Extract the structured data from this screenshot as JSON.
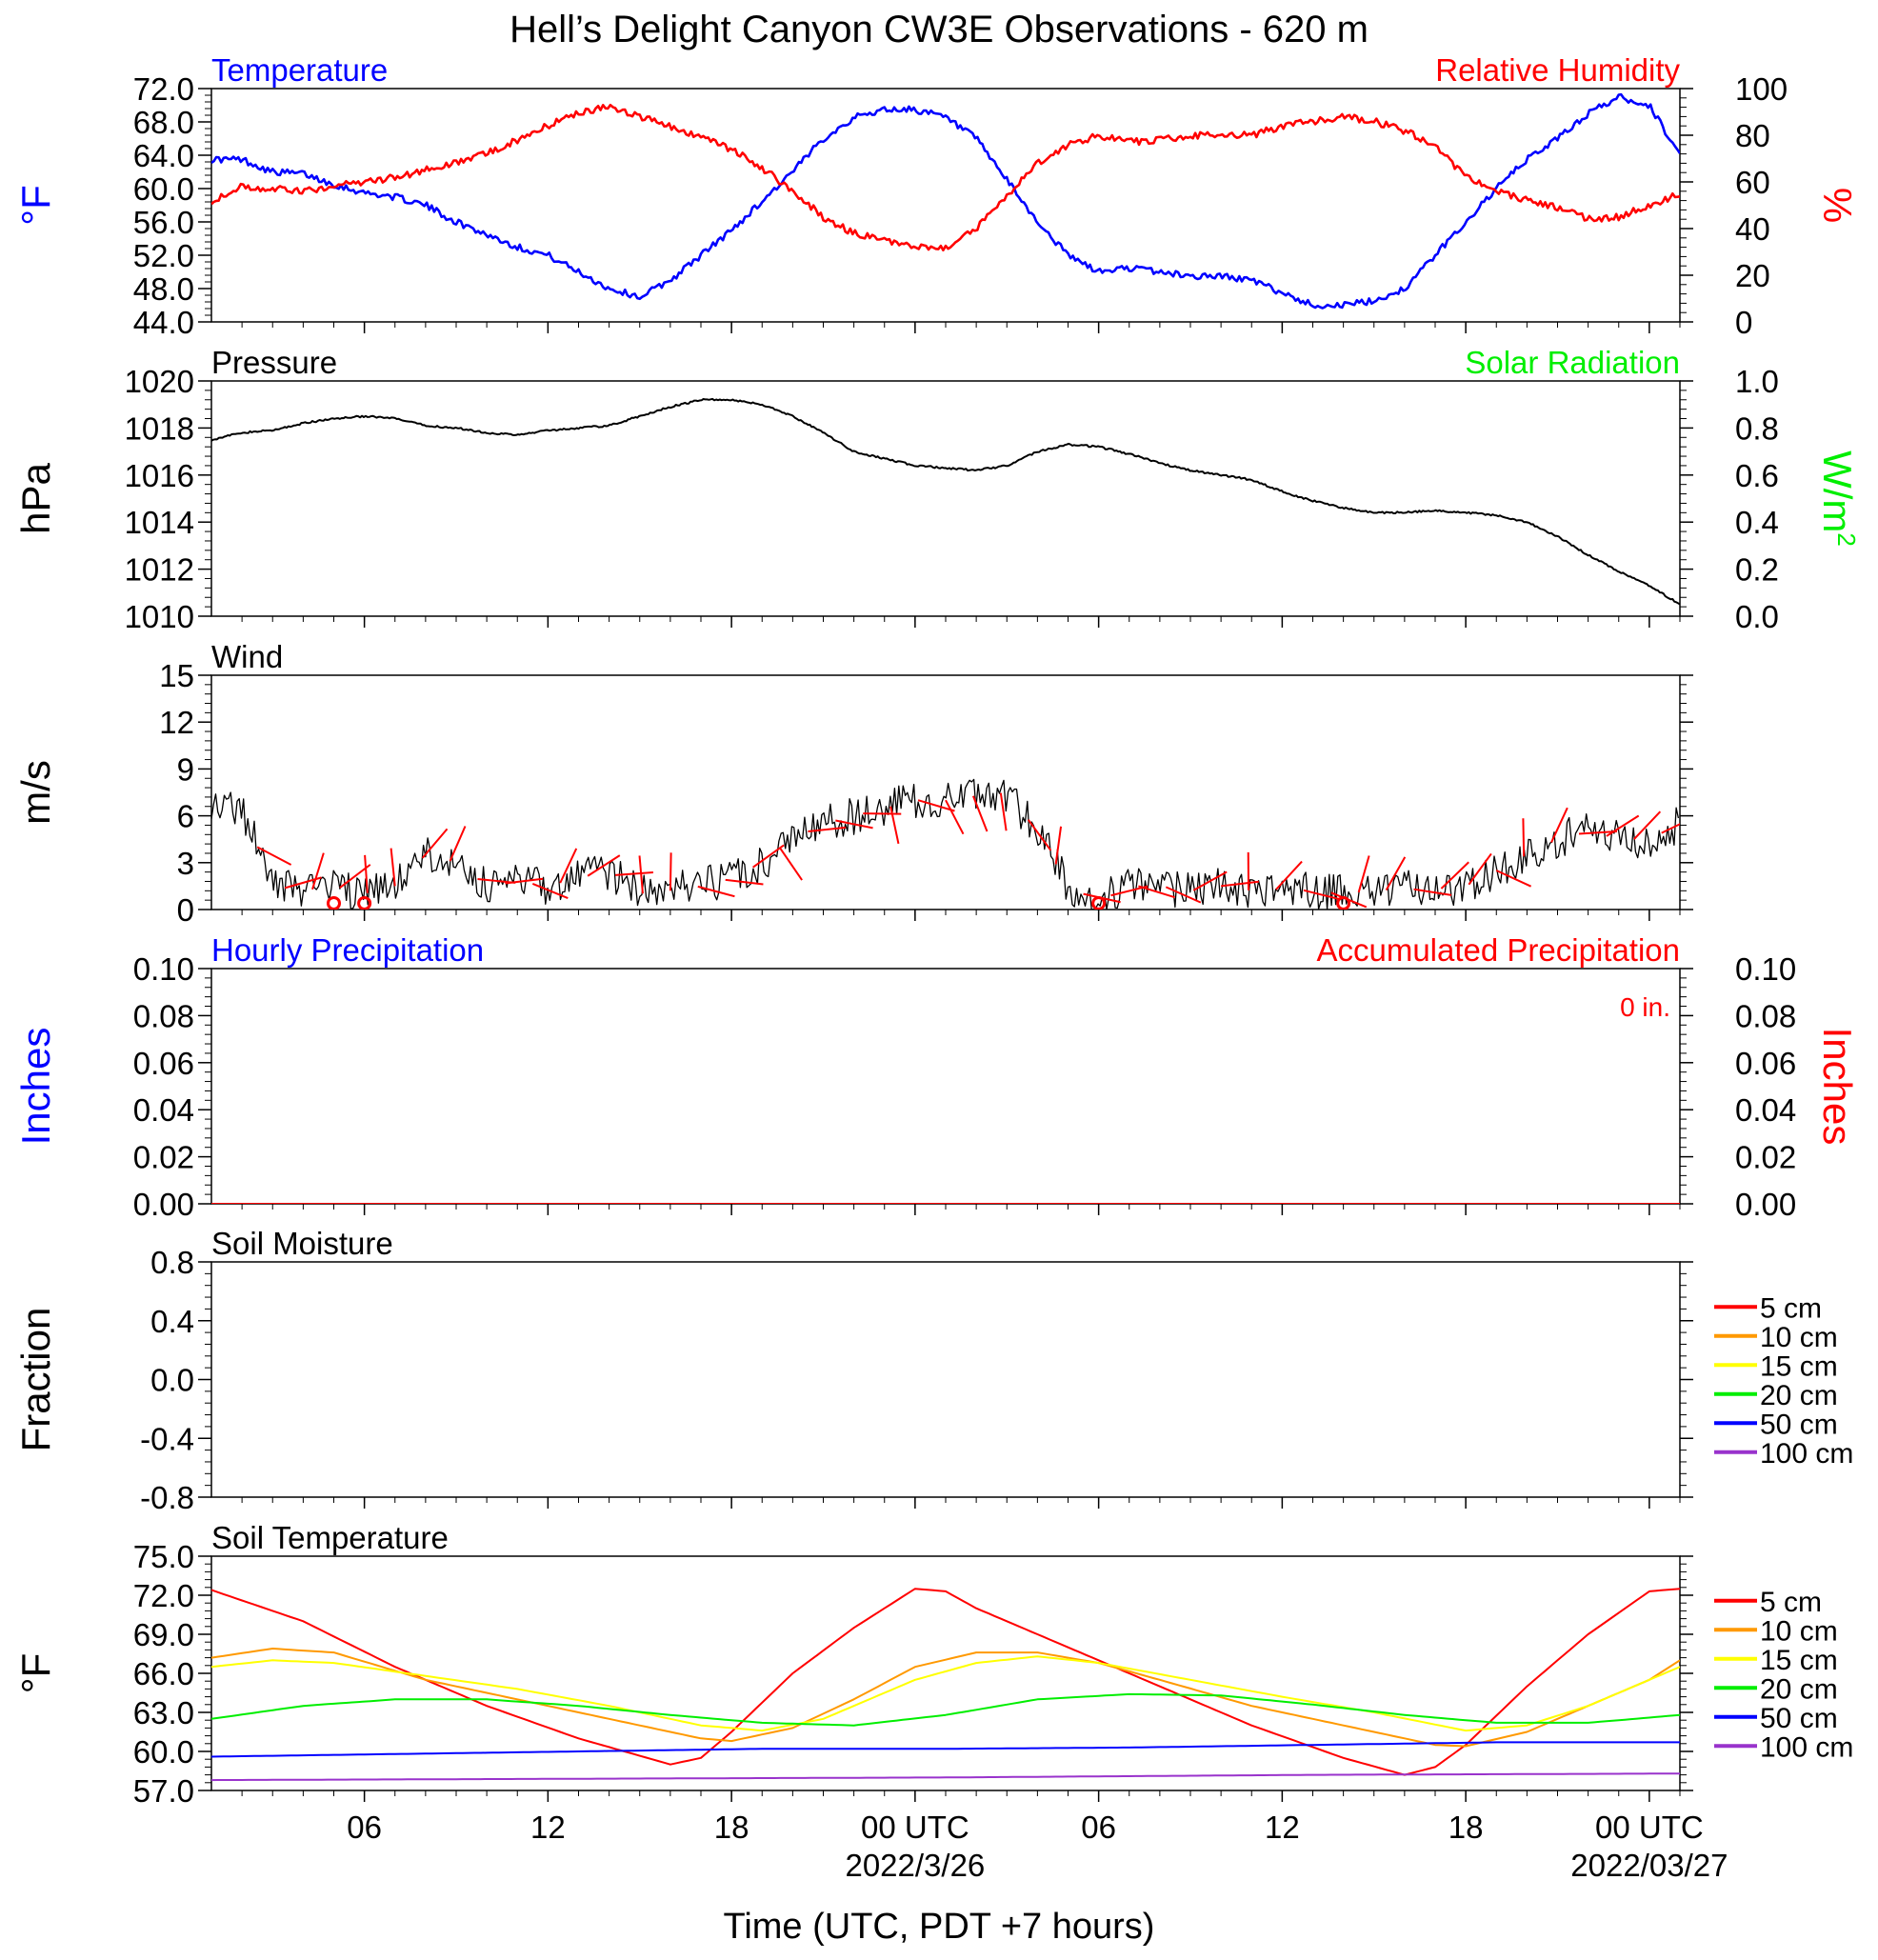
{
  "title": "Hell’s Delight Canyon CW3E Observations - 620 m",
  "xlabel": "Time (UTC, PDT +7 hours)",
  "x_ticks": [
    {
      "label": "06",
      "hours": 6
    },
    {
      "label": "12",
      "hours": 12
    },
    {
      "label": "18",
      "hours": 18
    },
    {
      "label": "00 UTC",
      "hours": 24,
      "date": "2022/3/26"
    },
    {
      "label": "06",
      "hours": 30
    },
    {
      "label": "12",
      "hours": 36
    },
    {
      "label": "18",
      "hours": 42
    },
    {
      "label": "00 UTC",
      "hours": 48,
      "date": "2022/03/27"
    }
  ],
  "x_range_hours": [
    1,
    49
  ],
  "colors": {
    "blue": "#0000ff",
    "red": "#ff0000",
    "green": "#00ee00",
    "black": "#000000",
    "orange": "#ff9900",
    "yellow": "#ffff00",
    "purple": "#9933cc"
  },
  "chart_data": [
    {
      "type": "line",
      "panel": "temperature_rh",
      "title_left": "Temperature",
      "title_right": "Relative Humidity",
      "ylabel_left": "°F",
      "ylabel_right": "%",
      "ylim_left": [
        44,
        72
      ],
      "yticks_left": [
        "72.0",
        "68.0",
        "64.0",
        "60.0",
        "56.0",
        "52.0",
        "48.0",
        "44.0"
      ],
      "ylim_right": [
        0,
        100
      ],
      "yticks_right": [
        "100",
        "80",
        "60",
        "40",
        "20",
        "0"
      ],
      "series": [
        {
          "name": "Temperature",
          "axis": "left",
          "color": "#0000ff",
          "x": [
            1,
            2,
            3,
            4,
            5,
            6,
            7,
            8,
            9,
            10,
            11,
            12,
            13,
            14,
            15,
            16,
            17,
            18,
            19,
            20,
            21,
            22,
            23,
            24,
            25,
            26,
            27,
            28,
            29,
            30,
            31,
            32,
            33,
            34,
            35,
            36,
            37,
            38,
            39,
            40,
            41,
            42,
            43,
            44,
            45,
            46,
            47,
            48,
            49
          ],
          "y": [
            63.5,
            63.5,
            62.0,
            61.8,
            60.5,
            59.5,
            59.0,
            58.0,
            56.0,
            54.5,
            53.0,
            52.0,
            50.0,
            48.0,
            47.0,
            49.0,
            52.0,
            55.0,
            58.5,
            62.0,
            66.0,
            68.5,
            69.5,
            69.5,
            68.5,
            66.0,
            61.0,
            56.0,
            52.0,
            50.0,
            50.5,
            50.0,
            49.5,
            49.5,
            49.0,
            47.5,
            46.0,
            46.0,
            46.5,
            48.0,
            52.0,
            56.0,
            60.0,
            63.5,
            66.0,
            69.0,
            71.0,
            70.0,
            64.0
          ]
        },
        {
          "name": "Relative Humidity",
          "axis": "right",
          "color": "#ff0000",
          "x": [
            1,
            2,
            3,
            4,
            5,
            6,
            7,
            8,
            9,
            10,
            11,
            12,
            13,
            14,
            15,
            16,
            17,
            18,
            19,
            20,
            21,
            22,
            23,
            24,
            25,
            26,
            27,
            28,
            29,
            30,
            31,
            32,
            33,
            34,
            35,
            36,
            37,
            38,
            39,
            40,
            41,
            42,
            43,
            44,
            45,
            46,
            47,
            48,
            49
          ],
          "y": [
            52,
            58,
            57,
            56,
            58,
            60,
            62,
            65,
            68,
            72,
            78,
            84,
            90,
            92,
            88,
            84,
            79,
            74,
            66,
            56,
            45,
            38,
            35,
            32,
            32,
            40,
            54,
            68,
            76,
            80,
            77,
            78,
            80,
            80,
            80,
            84,
            86,
            88,
            86,
            82,
            75,
            62,
            56,
            52,
            49,
            44,
            45,
            50,
            55
          ]
        }
      ]
    },
    {
      "type": "line",
      "panel": "pressure_solar",
      "title_left": "Pressure",
      "title_right": "Solar Radiation",
      "ylabel_left": "hPa",
      "ylabel_right_base": "W/m",
      "ylabel_right_sup": "2",
      "ylim_left": [
        1010,
        1020
      ],
      "yticks_left": [
        "1020",
        "1018",
        "1016",
        "1014",
        "1012",
        "1010"
      ],
      "ylim_right": [
        0,
        1
      ],
      "yticks_right": [
        "1.0",
        "0.8",
        "0.6",
        "0.4",
        "0.2",
        "0.0"
      ],
      "series": [
        {
          "name": "Pressure",
          "axis": "left",
          "color": "#000000",
          "x": [
            1,
            2,
            3,
            4,
            5,
            6,
            7,
            8,
            9,
            10,
            11,
            12,
            13,
            14,
            15,
            16,
            17,
            18,
            19,
            20,
            21,
            22,
            23,
            24,
            25,
            26,
            27,
            28,
            29,
            30,
            31,
            32,
            33,
            34,
            35,
            36,
            37,
            38,
            39,
            40,
            41,
            42,
            43,
            44,
            45,
            46,
            47,
            48,
            49
          ],
          "y": [
            1017.5,
            1017.8,
            1017.9,
            1018.2,
            1018.4,
            1018.5,
            1018.4,
            1018.1,
            1018.0,
            1017.8,
            1017.7,
            1017.9,
            1018.0,
            1018.1,
            1018.5,
            1018.9,
            1019.2,
            1019.2,
            1019.0,
            1018.5,
            1017.8,
            1017.0,
            1016.7,
            1016.4,
            1016.3,
            1016.2,
            1016.4,
            1017.0,
            1017.3,
            1017.2,
            1016.9,
            1016.5,
            1016.2,
            1016.0,
            1015.8,
            1015.3,
            1014.9,
            1014.6,
            1014.4,
            1014.4,
            1014.5,
            1014.4,
            1014.3,
            1014.0,
            1013.4,
            1012.6,
            1011.9,
            1011.3,
            1010.5
          ]
        }
      ]
    },
    {
      "type": "line",
      "panel": "wind",
      "title_left": "Wind",
      "ylabel_left": "m/s",
      "ylim_left": [
        0,
        15
      ],
      "yticks_left": [
        "15",
        "12",
        "9",
        "6",
        "3",
        "0"
      ],
      "series": [
        {
          "name": "Wind speed",
          "axis": "left",
          "color": "#000000",
          "x": [
            1,
            2,
            3,
            4,
            5,
            6,
            7,
            8,
            9,
            10,
            11,
            12,
            13,
            14,
            15,
            16,
            17,
            18,
            19,
            20,
            21,
            22,
            23,
            24,
            25,
            26,
            27,
            28,
            29,
            30,
            31,
            32,
            33,
            34,
            35,
            36,
            37,
            38,
            39,
            40,
            41,
            42,
            43,
            44,
            45,
            46,
            47,
            48,
            49
          ],
          "y": [
            7.0,
            6.5,
            1.5,
            1.2,
            1.5,
            1.0,
            1.5,
            3.5,
            3.0,
            1.5,
            1.8,
            1.5,
            2.0,
            2.5,
            1.0,
            1.2,
            1.5,
            2.0,
            3.0,
            4.5,
            5.5,
            6.0,
            6.5,
            7.0,
            7.0,
            7.3,
            7.5,
            5.0,
            1.5,
            0.5,
            1.5,
            1.5,
            1.2,
            1.5,
            1.2,
            1.3,
            1.2,
            1.0,
            1.2,
            1.3,
            1.3,
            1.5,
            2.5,
            3.5,
            4.5,
            5.0,
            4.5,
            4.5,
            5.5
          ]
        }
      ],
      "calm_markers_hours": [
        5,
        6,
        30,
        38
      ]
    },
    {
      "type": "line",
      "panel": "precipitation",
      "title_left": "Hourly Precipitation",
      "title_right": "Accumulated Precipitation",
      "annotation": "0 in.",
      "ylabel_left": "Inches",
      "ylabel_right": "Inches",
      "ylim_left": [
        0,
        0.1
      ],
      "yticks_left": [
        "0.10",
        "0.08",
        "0.06",
        "0.04",
        "0.02",
        "0.00"
      ],
      "yticks_right": [
        "0.10",
        "0.08",
        "0.06",
        "0.04",
        "0.02",
        "0.00"
      ],
      "series": [
        {
          "name": "Hourly Precipitation",
          "axis": "left",
          "color": "#0000ff",
          "x": [
            1,
            49
          ],
          "y": [
            0,
            0
          ]
        },
        {
          "name": "Accumulated Precipitation",
          "axis": "left",
          "color": "#ff0000",
          "x": [
            1,
            49
          ],
          "y": [
            0,
            0
          ]
        }
      ]
    },
    {
      "type": "line",
      "panel": "soil_moisture",
      "title_left": "Soil Moisture",
      "ylabel_left": "Fraction",
      "ylim_left": [
        -1,
        1
      ],
      "yticks_left": [
        "0.8",
        "0.4",
        "0.0",
        "-0.4",
        "-0.8"
      ],
      "legend": [
        {
          "label": "5 cm",
          "color": "#ff0000"
        },
        {
          "label": "10 cm",
          "color": "#ff9900"
        },
        {
          "label": "15 cm",
          "color": "#ffff00"
        },
        {
          "label": "20 cm",
          "color": "#00ee00"
        },
        {
          "label": "50 cm",
          "color": "#0000ff"
        },
        {
          "label": "100 cm",
          "color": "#9933cc"
        }
      ],
      "series": []
    },
    {
      "type": "line",
      "panel": "soil_temperature",
      "title_left": "Soil Temperature",
      "ylabel_left": "°F",
      "ylim_left": [
        57,
        75
      ],
      "yticks_left": [
        "75.0",
        "72.0",
        "69.0",
        "66.0",
        "63.0",
        "60.0",
        "57.0"
      ],
      "legend": [
        {
          "label": "5 cm",
          "color": "#ff0000"
        },
        {
          "label": "10 cm",
          "color": "#ff9900"
        },
        {
          "label": "15 cm",
          "color": "#ffff00"
        },
        {
          "label": "20 cm",
          "color": "#00ee00"
        },
        {
          "label": "50 cm",
          "color": "#0000ff"
        },
        {
          "label": "100 cm",
          "color": "#9933cc"
        }
      ],
      "series": [
        {
          "name": "5 cm",
          "color": "#ff0000",
          "x": [
            1,
            4,
            7,
            10,
            13,
            16,
            17,
            18,
            20,
            22,
            24,
            25,
            26,
            28,
            30,
            32,
            35,
            38,
            40,
            41,
            42,
            44,
            46,
            48,
            49
          ],
          "y": [
            72.4,
            70.0,
            66.5,
            63.5,
            61.0,
            59.0,
            59.5,
            61.5,
            66.0,
            69.5,
            72.5,
            72.3,
            71.0,
            69.0,
            67.0,
            65.0,
            62.0,
            59.5,
            58.2,
            58.8,
            60.5,
            65.0,
            69.0,
            72.3,
            72.5
          ]
        },
        {
          "name": "10 cm",
          "color": "#ff9900",
          "x": [
            1,
            3,
            5,
            8,
            11,
            14,
            17,
            18,
            20,
            22,
            24,
            26,
            28,
            30,
            32,
            35,
            38,
            41,
            42,
            44,
            46,
            48,
            49
          ],
          "y": [
            67.2,
            67.9,
            67.6,
            65.5,
            64.0,
            62.5,
            61.0,
            60.8,
            61.8,
            64.0,
            66.5,
            67.6,
            67.6,
            66.8,
            65.5,
            63.5,
            62.0,
            60.5,
            60.4,
            61.5,
            63.5,
            65.5,
            67.0
          ]
        },
        {
          "name": "15 cm",
          "color": "#ffff00",
          "x": [
            1,
            3,
            5,
            8,
            11,
            14,
            17,
            19,
            21,
            24,
            26,
            28,
            30,
            33,
            36,
            39,
            42,
            44,
            46,
            48,
            49
          ],
          "y": [
            66.5,
            67.0,
            66.8,
            65.8,
            64.8,
            63.5,
            62.0,
            61.6,
            62.5,
            65.5,
            66.8,
            67.3,
            66.8,
            65.5,
            64.2,
            63.0,
            61.6,
            62.0,
            63.5,
            65.5,
            66.5
          ]
        },
        {
          "name": "20 cm",
          "color": "#00ee00",
          "x": [
            1,
            4,
            7,
            10,
            13,
            16,
            19,
            22,
            25,
            28,
            31,
            34,
            37,
            40,
            43,
            46,
            49
          ],
          "y": [
            62.5,
            63.5,
            64.0,
            64.0,
            63.5,
            62.8,
            62.2,
            62.0,
            62.8,
            64.0,
            64.4,
            64.3,
            63.6,
            62.8,
            62.2,
            62.2,
            62.8
          ]
        },
        {
          "name": "50 cm",
          "color": "#0000ff",
          "x": [
            1,
            7,
            13,
            19,
            25,
            31,
            37,
            43,
            49
          ],
          "y": [
            59.6,
            59.8,
            60.0,
            60.2,
            60.2,
            60.3,
            60.5,
            60.7,
            60.7
          ]
        },
        {
          "name": "100 cm",
          "color": "#9933cc",
          "x": [
            1,
            13,
            25,
            37,
            49
          ],
          "y": [
            57.8,
            57.9,
            58.0,
            58.2,
            58.3
          ]
        }
      ]
    }
  ]
}
